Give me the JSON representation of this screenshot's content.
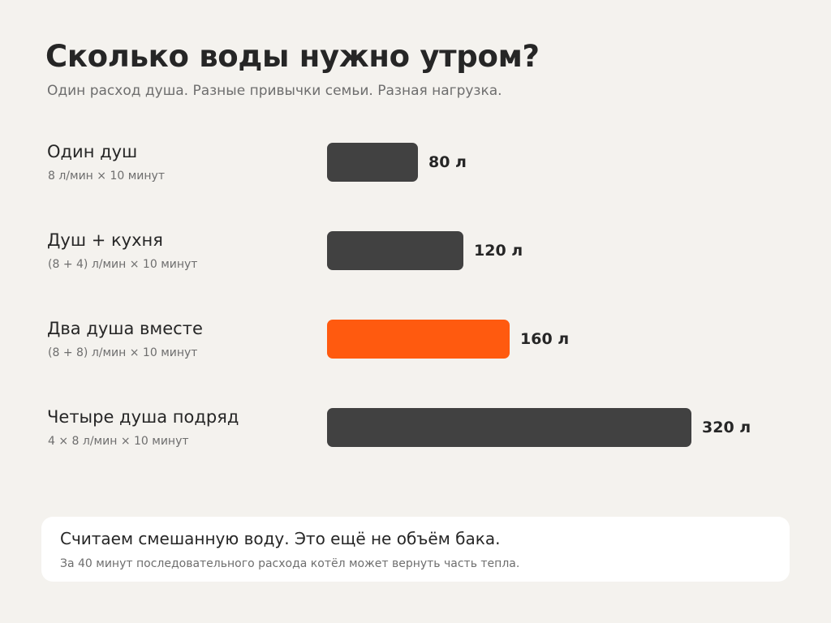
{
  "header": {
    "title": "Сколько воды нужно утром?",
    "subtitle": "Один расход душа. Разные привычки семьи. Разная нагрузка."
  },
  "chart_data": {
    "type": "bar",
    "orientation": "horizontal",
    "categories": [
      "Один душ",
      "Душ + кухня",
      "Два душа вместе",
      "Четыре душа подряд"
    ],
    "notes": [
      "8 л/мин × 10 минут",
      "(8 + 4) л/мин × 10 минут",
      "(8 + 8) л/мин × 10 минут",
      "4 × 8 л/мин × 10 минут"
    ],
    "values": [
      80,
      120,
      160,
      320
    ],
    "value_labels": [
      "80 л",
      "120 л",
      "160 л",
      "320 л"
    ],
    "unit": "л",
    "highlight_index": 2,
    "colors": {
      "default": "#414141",
      "highlight": "#ff5a0f"
    },
    "xlim": [
      0,
      320
    ],
    "grid": false
  },
  "note": {
    "title": "Считаем смешанную воду. Это ещё не объём бака.",
    "text": "За 40 минут последовательного расхода котёл может вернуть часть тепла."
  }
}
